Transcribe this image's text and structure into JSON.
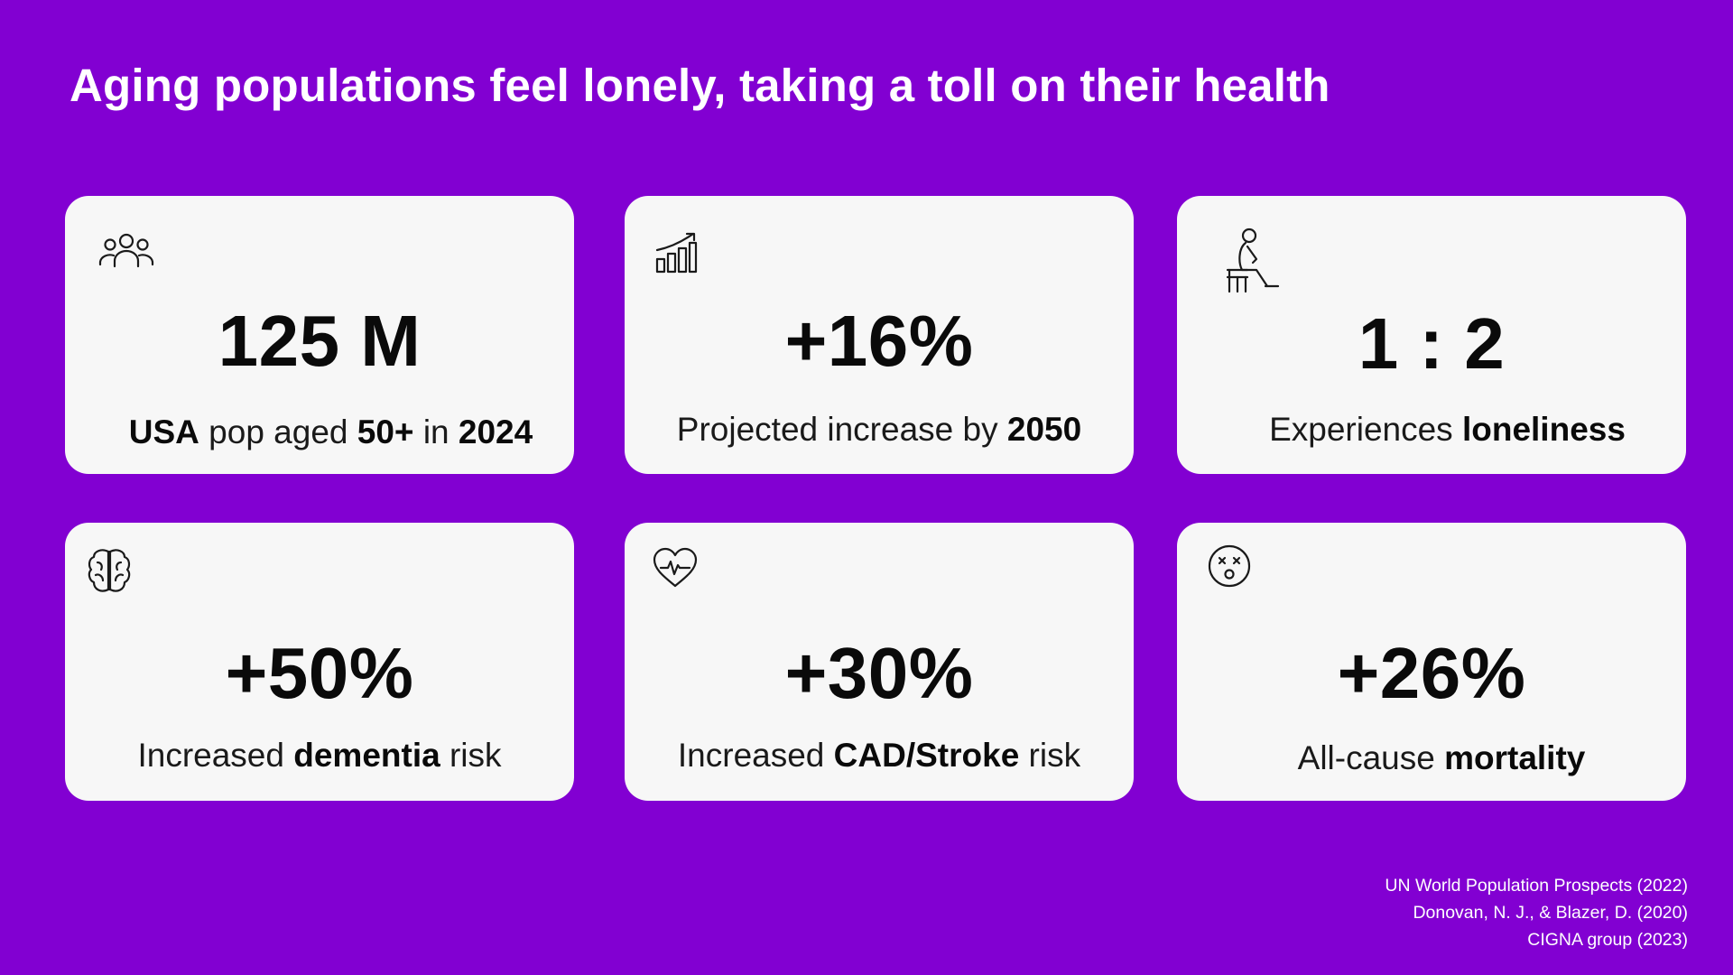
{
  "title": "Aging populations feel lonely, taking a toll on their health",
  "colors": {
    "background": "#8200d2",
    "card": "#f7f7f7",
    "text": "#0a0a0a"
  },
  "cards": [
    {
      "icon": "people-group-icon",
      "value": "125 M",
      "caption": [
        {
          "text": "USA",
          "bold": true
        },
        {
          "text": " pop aged ",
          "bold": false
        },
        {
          "text": "50+",
          "bold": true
        },
        {
          "text": " in ",
          "bold": false
        },
        {
          "text": "2024",
          "bold": true
        }
      ]
    },
    {
      "icon": "bar-chart-growth-icon",
      "value": "+16%",
      "caption": [
        {
          "text": "Projected increase by ",
          "bold": false
        },
        {
          "text": "2050",
          "bold": true
        }
      ]
    },
    {
      "icon": "person-sitting-bench-icon",
      "value": "1 : 2",
      "caption": [
        {
          "text": "Experiences ",
          "bold": false
        },
        {
          "text": "loneliness",
          "bold": true
        }
      ]
    },
    {
      "icon": "brain-icon",
      "value": "+50%",
      "caption": [
        {
          "text": "Increased ",
          "bold": false
        },
        {
          "text": "dementia",
          "bold": true
        },
        {
          "text": " risk",
          "bold": false
        }
      ]
    },
    {
      "icon": "heart-pulse-icon",
      "value": "+30%",
      "caption": [
        {
          "text": "Increased ",
          "bold": false
        },
        {
          "text": "CAD/Stroke",
          "bold": true
        },
        {
          "text": " risk",
          "bold": false
        }
      ]
    },
    {
      "icon": "dizzy-face-icon",
      "value": "+26%",
      "caption": [
        {
          "text": "All-cause ",
          "bold": false
        },
        {
          "text": "mortality",
          "bold": true
        }
      ]
    }
  ],
  "sources": [
    "UN World Population Prospects (2022)",
    "Donovan, N. J., & Blazer, D. (2020)",
    "CIGNA group (2023)"
  ]
}
